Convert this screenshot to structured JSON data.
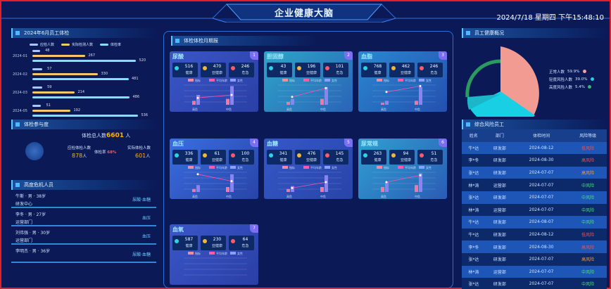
{
  "header": {
    "title": "企业健康大脑",
    "datetime": "2024/7/18 星期四 下午15:48:10"
  },
  "monthly": {
    "title": "2024年6月员工体检",
    "legend": [
      "应检人数",
      "实际检测人数",
      "体检率"
    ],
    "rows": [
      {
        "month": "2024-01",
        "a": "48",
        "b": "267",
        "c": "520",
        "bar_a": 0.07,
        "bar_b": 0.5,
        "bar_c": 0.98
      },
      {
        "month": "2024-02",
        "a": "57",
        "b": "330",
        "c": "481",
        "bar_a": 0.09,
        "bar_b": 0.62,
        "bar_c": 0.91
      },
      {
        "month": "2024-03",
        "a": "59",
        "b": "214",
        "c": "486",
        "bar_a": 0.09,
        "bar_b": 0.4,
        "bar_c": 0.92
      },
      {
        "month": "2024-05",
        "a": "51",
        "b": "192",
        "c": "536",
        "bar_a": 0.08,
        "bar_b": 0.36,
        "bar_c": 1.0
      }
    ]
  },
  "participation": {
    "title": "体检参与度",
    "total_label": "体检总人数",
    "total": "6601",
    "unit": "人",
    "should_label": "应检体检人数",
    "should": "878",
    "actual_label": "实际体检人数",
    "actual": "601",
    "rate_label": "体检率",
    "rate": "68%"
  },
  "highrisk": {
    "title": "高度危机人员",
    "people": [
      {
        "name": "牛斯 · 男 · 38岁",
        "dept": "研发中心",
        "disease": "尿酸·血糖"
      },
      {
        "name": "李冬 · 男 · 27岁",
        "dept": "运营部门",
        "disease": "血压"
      },
      {
        "name": "刘伟强 · 男 · 30岁",
        "dept": "运营部门",
        "disease": "血压"
      },
      {
        "name": "李明杰 · 男 · 36岁",
        "dept": "",
        "disease": "尿酸·血糖"
      }
    ]
  },
  "middle": {
    "title": "体检体检月期报",
    "stat_labels": [
      "健康",
      "亚健康",
      "危急"
    ],
    "legend": [
      "指标",
      "平均年龄",
      "女性"
    ],
    "cards": [
      {
        "name": "尿酸",
        "num": "1",
        "healthy": "516",
        "sub": "470",
        "danger": "246",
        "x": [
          "高危",
          "中危"
        ],
        "bars": [
          0.5,
          0.95
        ],
        "bars2": [
          0.2,
          0.3
        ],
        "line": [
          0.35,
          0.5
        ]
      },
      {
        "name": "胆固醇",
        "num": "2",
        "healthy": "43",
        "sub": "196",
        "danger": "101",
        "x": [
          "高危",
          "中危"
        ],
        "bars": [
          0.3,
          0.9
        ],
        "bars2": [
          0.15,
          0.3
        ],
        "line": [
          0.4,
          0.85
        ]
      },
      {
        "name": "血脂",
        "num": "3",
        "healthy": "768",
        "sub": "462",
        "danger": "246",
        "x": [
          "高危",
          "中危"
        ],
        "bars": [
          0.2,
          0.9
        ],
        "bars2": [
          0.1,
          0.2
        ],
        "line": [
          0.65,
          0.95
        ]
      },
      {
        "name": "血压",
        "num": "4",
        "healthy": "336",
        "sub": "61",
        "danger": "100",
        "x": [
          "高危",
          "中危"
        ],
        "bars": [
          0.35,
          0.9
        ],
        "bars2": [
          0.15,
          0.25
        ],
        "line": [
          0.9,
          0.55
        ]
      },
      {
        "name": "血糖",
        "num": "5",
        "healthy": "341",
        "sub": "476",
        "danger": "145",
        "x": [
          "高危",
          "中危"
        ],
        "bars": [
          0.3,
          0.85
        ],
        "bars2": [
          0.15,
          0.25
        ],
        "line": [
          0.2,
          0.5
        ]
      },
      {
        "name": "尿常规",
        "num": "6",
        "healthy": "263",
        "sub": "94",
        "danger": "51",
        "x": [
          "高危",
          "中危"
        ],
        "bars": [
          0.5,
          0.95
        ],
        "bars2": [
          0.25,
          0.35
        ],
        "line": [
          0.5,
          0.85
        ]
      },
      {
        "name": "血氧",
        "num": "7",
        "healthy": "587",
        "sub": "230",
        "danger": "64",
        "x": [],
        "bars": [],
        "bars2": [],
        "line": []
      }
    ]
  },
  "overview": {
    "title": "员工健康概况",
    "items": [
      {
        "label": "正常人数",
        "pct": "59.9%",
        "color": "#f2a0a0"
      },
      {
        "label": "轻度风险人数",
        "pct": "39.0%",
        "color": "#1ad3e6"
      },
      {
        "label": "高度风险人数",
        "pct": "5.4%",
        "color": "#35b96a"
      }
    ]
  },
  "risk": {
    "title": "综合风险员工",
    "headers": [
      "姓名",
      "部门",
      "体检时间",
      "风险等级"
    ],
    "rows": [
      {
        "name": "牛*达",
        "dept": "研发部",
        "date": "2024-08-12",
        "level": "低风险",
        "cls": "lv-h"
      },
      {
        "name": "李*冬",
        "dept": "研发部",
        "date": "2024-08-30",
        "level": "高风险",
        "cls": "lv-h"
      },
      {
        "name": "张*达",
        "dept": "研发部",
        "date": "2024-07-07",
        "level": "高风险",
        "cls": "lv-m"
      },
      {
        "name": "林*涛",
        "dept": "运营部",
        "date": "2024-07-07",
        "level": "中风险",
        "cls": "lv-l"
      },
      {
        "name": "张*达",
        "dept": "研发部",
        "date": "2024-07-07",
        "level": "中风险",
        "cls": "lv-l"
      },
      {
        "name": "林*涛",
        "dept": "运营部",
        "date": "2024-07-07",
        "level": "中风险",
        "cls": "lv-l"
      },
      {
        "name": "牛*达",
        "dept": "研发部",
        "date": "2024-08-07",
        "level": "中风险",
        "cls": "lv-l"
      },
      {
        "name": "牛*达",
        "dept": "研发部",
        "date": "2024-08-12",
        "level": "低风险",
        "cls": "lv-h"
      },
      {
        "name": "李*冬",
        "dept": "研发部",
        "date": "2024-08-30",
        "level": "高风险",
        "cls": "lv-h"
      },
      {
        "name": "张*达",
        "dept": "研发部",
        "date": "2024-07-07",
        "level": "高风险",
        "cls": "lv-m"
      },
      {
        "name": "林*涛",
        "dept": "运营部",
        "date": "2024-07-07",
        "level": "中风险",
        "cls": "lv-l"
      },
      {
        "name": "张*达",
        "dept": "研发部",
        "date": "2024-07-07",
        "level": "中风险",
        "cls": "lv-l"
      }
    ]
  }
}
